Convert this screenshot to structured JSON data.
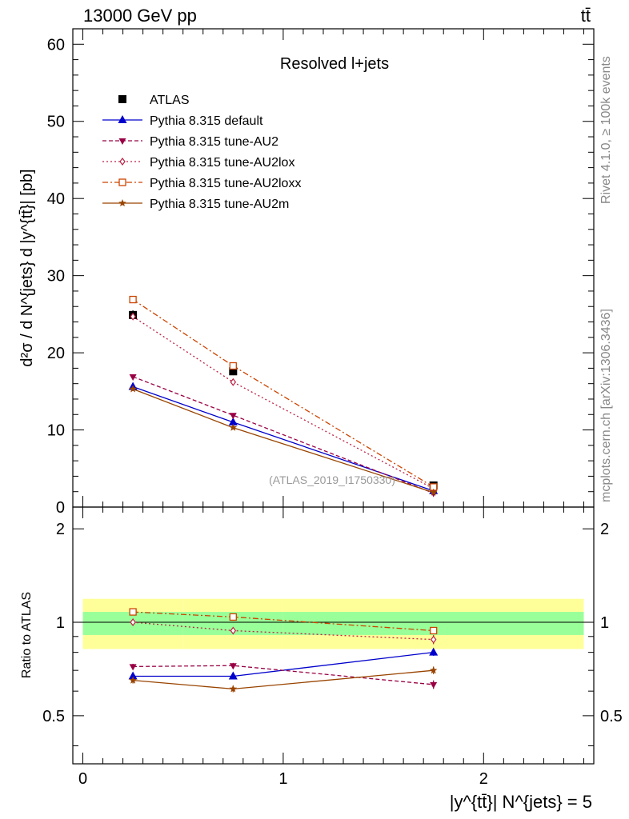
{
  "header": {
    "energy_label": "13000 GeV pp",
    "process_label": "tt̄"
  },
  "side_labels": {
    "rivet": "Rivet 4.1.0, ≥ 100k events",
    "source": "mcplots.cern.ch [arXiv:1306.3436]"
  },
  "chart_data": [
    {
      "id": "main",
      "type": "line",
      "title": "Resolved l+jets",
      "ylabel": "d²σ / d N^{jets} d |y^{tt̄}| [pb]",
      "xlabel": "|y^{tt̄}| N^{jets} = 5",
      "watermark": "(ATLAS_2019_I1750330)",
      "xlim": [
        -0.05,
        2.55
      ],
      "ylim": [
        0,
        62
      ],
      "yticks": [
        0,
        10,
        20,
        30,
        40,
        50,
        60
      ],
      "x": [
        0.25,
        0.75,
        1.75
      ],
      "x_bins": [
        [
          0.0,
          0.5
        ],
        [
          0.5,
          1.0
        ],
        [
          1.0,
          2.5
        ]
      ],
      "series": [
        {
          "name": "ATLAS",
          "values": [
            24.9,
            17.6,
            2.8
          ],
          "errors": [
            0.6,
            0.5,
            0.15
          ],
          "color": "#000000",
          "marker": "filled-square",
          "dash": "none"
        },
        {
          "name": "Pythia 8.315 default",
          "values": [
            15.6,
            11.0,
            2.1
          ],
          "errors": [
            0.2,
            0.2,
            0.1
          ],
          "color": "#0000cc",
          "marker": "filled-triangle-up",
          "dash": "solid"
        },
        {
          "name": "Pythia 8.315 tune-AU2",
          "values": [
            16.9,
            11.9,
            1.8
          ],
          "errors": [
            0.2,
            0.2,
            0.1
          ],
          "color": "#990044",
          "marker": "filled-triangle-down",
          "dash": "dash"
        },
        {
          "name": "Pythia 8.315 tune-AU2lox",
          "values": [
            24.7,
            16.2,
            2.4
          ],
          "errors": [
            0.3,
            0.3,
            0.1
          ],
          "color": "#bb2244",
          "marker": "open-diamond",
          "dash": "dot"
        },
        {
          "name": "Pythia 8.315 tune-AU2loxx",
          "values": [
            26.9,
            18.3,
            2.6
          ],
          "errors": [
            0.3,
            0.3,
            0.1
          ],
          "color": "#cc4400",
          "marker": "open-square",
          "dash": "dashdot"
        },
        {
          "name": "Pythia 8.315 tune-AU2m",
          "values": [
            15.3,
            10.3,
            1.9
          ],
          "errors": [
            0.2,
            0.2,
            0.1
          ],
          "color": "#994400",
          "marker": "filled-star",
          "dash": "solid"
        }
      ]
    },
    {
      "id": "ratio",
      "type": "line",
      "ylabel": "Ratio to ATLAS",
      "ylim": [
        0.35,
        2.35
      ],
      "yticks": [
        0.5,
        1,
        2
      ],
      "band_inner": [
        [
          0.91,
          1.08
        ],
        [
          0.91,
          1.08
        ],
        [
          0.91,
          1.08
        ]
      ],
      "band_outer": [
        [
          0.82,
          1.19
        ],
        [
          0.82,
          1.19
        ],
        [
          0.82,
          1.19
        ]
      ],
      "band_inner_color": "#99ff99",
      "band_outer_color": "#ffff99",
      "series": [
        {
          "name": "Pythia 8.315 default",
          "values": [
            0.67,
            0.67,
            0.8
          ],
          "errors": [
            0.015,
            0.015,
            0.02
          ]
        },
        {
          "name": "Pythia 8.315 tune-AU2",
          "values": [
            0.72,
            0.725,
            0.63
          ],
          "errors": [
            0.015,
            0.015,
            0.02
          ]
        },
        {
          "name": "Pythia 8.315 tune-AU2lox",
          "values": [
            1.0,
            0.94,
            0.88
          ],
          "errors": [
            0.02,
            0.02,
            0.03
          ]
        },
        {
          "name": "Pythia 8.315 tune-AU2loxx",
          "values": [
            1.08,
            1.04,
            0.94
          ],
          "errors": [
            0.02,
            0.02,
            0.025
          ]
        },
        {
          "name": "Pythia 8.315 tune-AU2m",
          "values": [
            0.65,
            0.61,
            0.7
          ],
          "errors": [
            0.015,
            0.015,
            0.02
          ]
        }
      ]
    }
  ]
}
